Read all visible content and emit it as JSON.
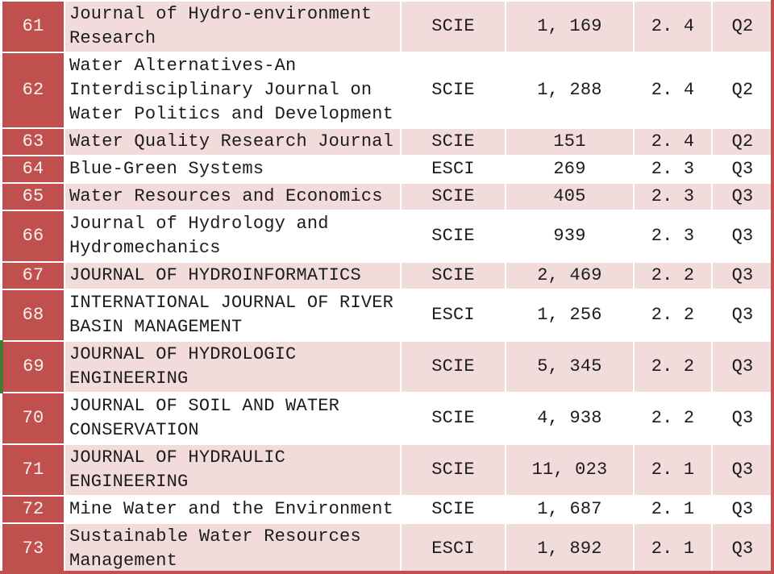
{
  "colors": {
    "accent_red": "#C0504D",
    "row_pink": "#F2DCDB",
    "row_white": "#FFFFFF",
    "grid_white": "#FFFFFF",
    "text_dark": "#1C1C1C",
    "rank_text": "#F6F0EF",
    "green_edge": "#417A32"
  },
  "table": {
    "rows": [
      {
        "rank": "61",
        "journal": "Journal of Hydro-environment Research",
        "index_type": "SCIE",
        "citations": "1, 169",
        "impact_factor": "2. 4",
        "quartile": "Q2"
      },
      {
        "rank": "62",
        "journal": "Water Alternatives-An Interdisciplinary Journal on Water Politics and Development",
        "index_type": "SCIE",
        "citations": "1, 288",
        "impact_factor": "2. 4",
        "quartile": "Q2"
      },
      {
        "rank": "63",
        "journal": "Water Quality Research Journal",
        "index_type": "SCIE",
        "citations": "151",
        "impact_factor": "2. 4",
        "quartile": "Q2"
      },
      {
        "rank": "64",
        "journal": "Blue-Green Systems",
        "index_type": "ESCI",
        "citations": "269",
        "impact_factor": "2. 3",
        "quartile": "Q3"
      },
      {
        "rank": "65",
        "journal": "Water Resources and Economics",
        "index_type": "SCIE",
        "citations": "405",
        "impact_factor": "2. 3",
        "quartile": "Q3"
      },
      {
        "rank": "66",
        "journal": "Journal of Hydrology and Hydromechanics",
        "index_type": "SCIE",
        "citations": "939",
        "impact_factor": "2. 3",
        "quartile": "Q3"
      },
      {
        "rank": "67",
        "journal": "JOURNAL OF HYDROINFORMATICS",
        "index_type": "SCIE",
        "citations": "2, 469",
        "impact_factor": "2. 2",
        "quartile": "Q3"
      },
      {
        "rank": "68",
        "journal": "INTERNATIONAL JOURNAL OF RIVER BASIN MANAGEMENT",
        "index_type": "ESCI",
        "citations": "1, 256",
        "impact_factor": "2. 2",
        "quartile": "Q3"
      },
      {
        "rank": "69",
        "journal": "JOURNAL OF HYDROLOGIC ENGINEERING",
        "index_type": "SCIE",
        "citations": "5, 345",
        "impact_factor": "2. 2",
        "quartile": "Q3",
        "green_left_edge": true
      },
      {
        "rank": "70",
        "journal": "JOURNAL OF SOIL AND WATER CONSERVATION",
        "index_type": "SCIE",
        "citations": "4, 938",
        "impact_factor": "2. 2",
        "quartile": "Q3"
      },
      {
        "rank": "71",
        "journal": "JOURNAL OF HYDRAULIC ENGINEERING",
        "index_type": "SCIE",
        "citations": "11, 023",
        "impact_factor": "2. 1",
        "quartile": "Q3"
      },
      {
        "rank": "72",
        "journal": "Mine Water and the Environment",
        "index_type": "SCIE",
        "citations": "1, 687",
        "impact_factor": "2. 1",
        "quartile": "Q3"
      },
      {
        "rank": "73",
        "journal": "Sustainable Water Resources Management",
        "index_type": "ESCI",
        "citations": "1, 892",
        "impact_factor": "2. 1",
        "quartile": "Q3"
      }
    ]
  }
}
